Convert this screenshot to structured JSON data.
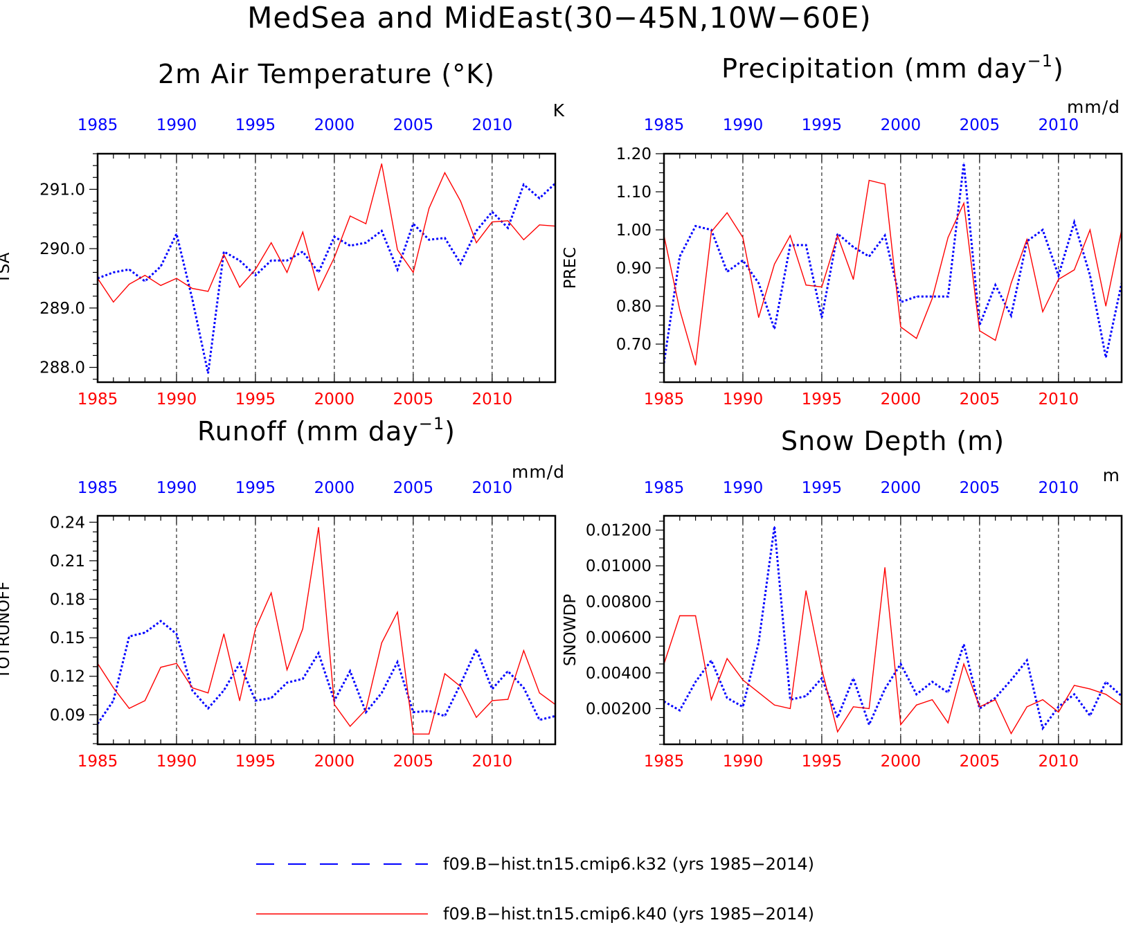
{
  "figure": {
    "title": "MedSea and MidEast(30−45N,10W−60E)"
  },
  "colors": {
    "k32": "#0000ff",
    "k40": "#ff0000",
    "axis": "#000000"
  },
  "legend": {
    "placement": "bottom-center",
    "entries": [
      {
        "series": "k32",
        "label": "f09.B−hist.tn15.cmip6.k32 (yrs 1985−2014)",
        "style": "dashed",
        "color": "#0000ff"
      },
      {
        "series": "k40",
        "label": "f09.B−hist.tn15.cmip6.k40 (yrs 1985−2014)",
        "style": "solid",
        "color": "#ff0000"
      }
    ]
  },
  "chart_data": [
    {
      "type": "line",
      "title": "2m Air Temperature (°K)",
      "title_sup": "",
      "title_tail": "",
      "unit": "K",
      "ylabel": "TSA",
      "xlim": [
        1985,
        2014
      ],
      "ylim": [
        287.75,
        291.6
      ],
      "yticks": [
        288.0,
        289.0,
        290.0,
        291.0
      ],
      "ytick_labels": [
        "288.0",
        "289.0",
        "290.0",
        "291.0"
      ],
      "yminor": 0.2,
      "xticks": [
        1985,
        1990,
        1995,
        2000,
        2005,
        2010
      ],
      "xtick_labels": [
        "1985",
        "1990",
        "1995",
        "2000",
        "2005",
        "2010"
      ],
      "x": [
        1985,
        1986,
        1987,
        1988,
        1989,
        1990,
        1991,
        1992,
        1993,
        1994,
        1995,
        1996,
        1997,
        1998,
        1999,
        2000,
        2001,
        2002,
        2003,
        2004,
        2005,
        2006,
        2007,
        2008,
        2009,
        2010,
        2011,
        2012,
        2013,
        2014
      ],
      "series": [
        {
          "key": "k32",
          "values": [
            289.5,
            289.6,
            289.65,
            289.45,
            289.7,
            290.25,
            289.15,
            287.9,
            289.95,
            289.8,
            289.55,
            289.8,
            289.8,
            289.95,
            289.6,
            290.2,
            290.05,
            290.1,
            290.3,
            289.65,
            290.42,
            290.15,
            290.18,
            289.75,
            290.3,
            290.62,
            290.35,
            291.08,
            290.85,
            291.1
          ]
        },
        {
          "key": "k40",
          "values": [
            289.5,
            289.1,
            289.4,
            289.55,
            289.38,
            289.5,
            289.33,
            289.28,
            289.9,
            289.35,
            289.65,
            290.1,
            289.6,
            290.28,
            289.3,
            289.85,
            290.55,
            290.42,
            291.43,
            289.98,
            289.6,
            290.68,
            291.28,
            290.8,
            290.1,
            290.45,
            290.47,
            290.15,
            290.4,
            290.38
          ]
        }
      ]
    },
    {
      "type": "line",
      "title": "Precipitation (mm day",
      "title_sup": "−1",
      "title_tail": ")",
      "unit": "mm/d",
      "ylabel": "PREC",
      "xlim": [
        1985,
        2014
      ],
      "ylim": [
        0.6,
        1.2
      ],
      "yticks": [
        0.7,
        0.8,
        0.9,
        1.0,
        1.1,
        1.2
      ],
      "ytick_labels": [
        "0.70",
        "0.80",
        "0.90",
        "1.00",
        "1.10",
        "1.20"
      ],
      "yminor": 0.025,
      "xticks": [
        1985,
        1990,
        1995,
        2000,
        2005,
        2010
      ],
      "xtick_labels": [
        "1985",
        "1990",
        "1995",
        "2000",
        "2005",
        "2010"
      ],
      "x": [
        1985,
        1986,
        1987,
        1988,
        1989,
        1990,
        1991,
        1992,
        1993,
        1994,
        1995,
        1996,
        1997,
        1998,
        1999,
        2000,
        2001,
        2002,
        2003,
        2004,
        2005,
        2006,
        2007,
        2008,
        2009,
        2010,
        2011,
        2012,
        2013,
        2014
      ],
      "series": [
        {
          "key": "k32",
          "values": [
            0.65,
            0.93,
            1.01,
            1.0,
            0.89,
            0.92,
            0.86,
            0.74,
            0.96,
            0.96,
            0.77,
            0.99,
            0.955,
            0.93,
            0.985,
            0.81,
            0.825,
            0.825,
            0.825,
            1.175,
            0.75,
            0.855,
            0.775,
            0.97,
            1.0,
            0.88,
            1.02,
            0.88,
            0.665,
            0.86
          ]
        },
        {
          "key": "k40",
          "values": [
            0.985,
            0.79,
            0.645,
            0.995,
            1.045,
            0.98,
            0.77,
            0.91,
            0.985,
            0.855,
            0.85,
            0.985,
            0.87,
            1.13,
            1.12,
            0.745,
            0.715,
            0.82,
            0.98,
            1.07,
            0.735,
            0.71,
            0.86,
            0.975,
            0.785,
            0.87,
            0.895,
            1.0,
            0.8,
            1.0
          ]
        }
      ]
    },
    {
      "type": "line",
      "title": "Runoff (mm day",
      "title_sup": "−1",
      "title_tail": ")",
      "unit": "mm/d",
      "ylabel": "TOTRUNOFF",
      "xlim": [
        1985,
        2014
      ],
      "ylim": [
        0.067,
        0.245
      ],
      "yticks": [
        0.09,
        0.12,
        0.15,
        0.18,
        0.21,
        0.24
      ],
      "ytick_labels": [
        "0.09",
        "0.12",
        "0.15",
        "0.18",
        "0.21",
        "0.24"
      ],
      "yminor": 0.0075,
      "xticks": [
        1985,
        1990,
        1995,
        2000,
        2005,
        2010
      ],
      "xtick_labels": [
        "1985",
        "1990",
        "1995",
        "2000",
        "2005",
        "2010"
      ],
      "x": [
        1985,
        1986,
        1987,
        1988,
        1989,
        1990,
        1991,
        1992,
        1993,
        1994,
        1995,
        1996,
        1997,
        1998,
        1999,
        2000,
        2001,
        2002,
        2003,
        2004,
        2005,
        2006,
        2007,
        2008,
        2009,
        2010,
        2011,
        2012,
        2013,
        2014
      ],
      "series": [
        {
          "key": "k32",
          "values": [
            0.083,
            0.101,
            0.151,
            0.154,
            0.163,
            0.153,
            0.109,
            0.095,
            0.109,
            0.13,
            0.101,
            0.103,
            0.115,
            0.118,
            0.138,
            0.101,
            0.124,
            0.092,
            0.107,
            0.131,
            0.092,
            0.093,
            0.089,
            0.114,
            0.141,
            0.11,
            0.124,
            0.111,
            0.086,
            0.089
          ]
        },
        {
          "key": "k40",
          "values": [
            0.13,
            0.111,
            0.095,
            0.101,
            0.127,
            0.13,
            0.111,
            0.107,
            0.153,
            0.101,
            0.157,
            0.185,
            0.125,
            0.157,
            0.236,
            0.098,
            0.081,
            0.094,
            0.146,
            0.17,
            0.075,
            0.075,
            0.122,
            0.112,
            0.088,
            0.101,
            0.102,
            0.14,
            0.107,
            0.098
          ]
        }
      ]
    },
    {
      "type": "line",
      "title": "Snow Depth (m)",
      "title_sup": "",
      "title_tail": "",
      "unit": "m",
      "ylabel": "SNOWDP",
      "xlim": [
        1985,
        2014
      ],
      "ylim": [
        0.0,
        0.0128
      ],
      "yticks": [
        0.002,
        0.004,
        0.006,
        0.008,
        0.01,
        0.012
      ],
      "ytick_labels": [
        "0.00200",
        "0.00400",
        "0.00600",
        "0.00800",
        "0.01000",
        "0.01200"
      ],
      "yminor": 0.0005,
      "xticks": [
        1985,
        1990,
        1995,
        2000,
        2005,
        2010
      ],
      "xtick_labels": [
        "1985",
        "1990",
        "1995",
        "2000",
        "2005",
        "2010"
      ],
      "x": [
        1985,
        1986,
        1987,
        1988,
        1989,
        1990,
        1991,
        1992,
        1993,
        1994,
        1995,
        1996,
        1997,
        1998,
        1999,
        2000,
        2001,
        2002,
        2003,
        2004,
        2005,
        2006,
        2007,
        2008,
        2009,
        2010,
        2011,
        2012,
        2013,
        2014
      ],
      "series": [
        {
          "key": "k32",
          "values": [
            0.0024,
            0.0019,
            0.0035,
            0.0047,
            0.0026,
            0.0021,
            0.0057,
            0.0122,
            0.0025,
            0.0027,
            0.0037,
            0.0015,
            0.0037,
            0.0011,
            0.0031,
            0.0045,
            0.0028,
            0.0035,
            0.0029,
            0.0056,
            0.002,
            0.0026,
            0.0036,
            0.0047,
            0.0009,
            0.0021,
            0.0028,
            0.0016,
            0.0035,
            0.0027
          ]
        },
        {
          "key": "k40",
          "values": [
            0.0045,
            0.0072,
            0.0072,
            0.0025,
            0.0048,
            0.0036,
            0.0029,
            0.0022,
            0.002,
            0.0086,
            0.0042,
            0.0007,
            0.0021,
            0.002,
            0.0099,
            0.0011,
            0.0022,
            0.0025,
            0.0012,
            0.0045,
            0.0021,
            0.0025,
            0.0006,
            0.0021,
            0.0025,
            0.0018,
            0.0033,
            0.0031,
            0.0028,
            0.0022
          ]
        }
      ]
    }
  ]
}
